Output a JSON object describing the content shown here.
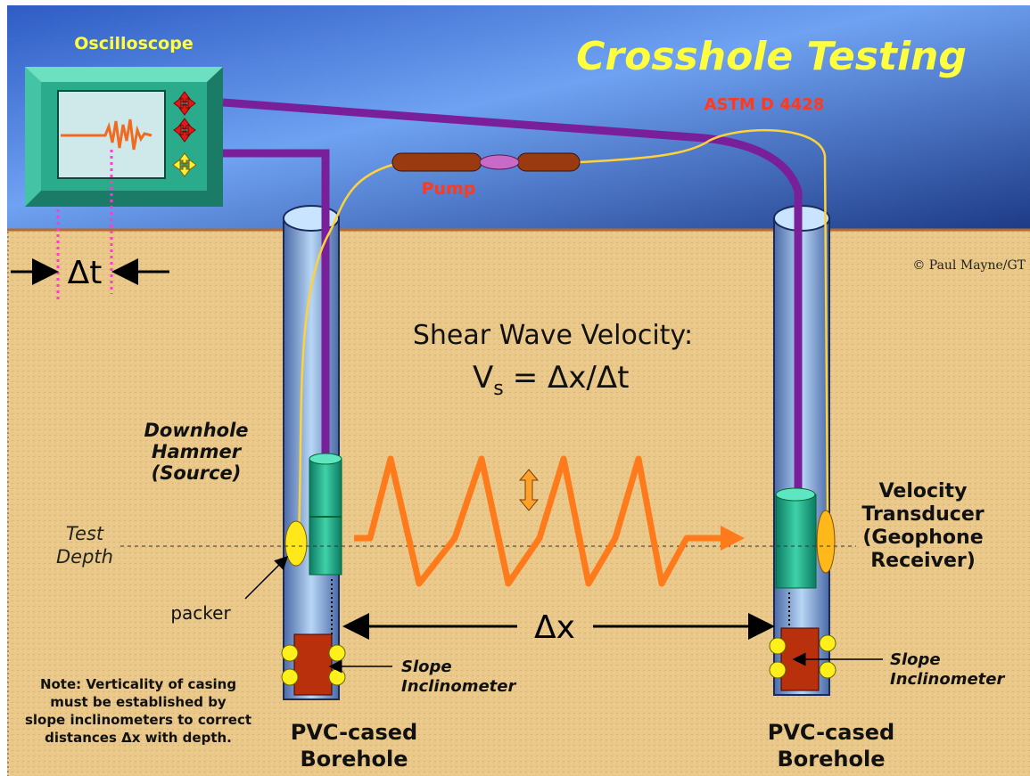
{
  "title": "Crosshole Testing",
  "standard": "ASTM D 4428",
  "credit": "© Paul Mayne/GT",
  "oscilloscope": {
    "label": "Oscilloscope",
    "delta_t": "Δt"
  },
  "pump": "Pump",
  "formula": {
    "heading": "Shear Wave Velocity:",
    "symbol": "V",
    "subscript": "s",
    "rest": "=  Δx/Δt"
  },
  "source": {
    "lines": [
      "Downhole",
      "Hammer",
      "(Source)"
    ]
  },
  "test_depth": {
    "lines": [
      "Test",
      "Depth"
    ]
  },
  "packer": "packer",
  "receiver": {
    "lines": [
      "Velocity",
      "Transducer",
      "(Geophone",
      "Receiver)"
    ]
  },
  "spacing": "Δx",
  "left_inclinometer": {
    "lines": [
      "Slope",
      "Inclinometer"
    ]
  },
  "right_inclinometer": {
    "lines": [
      "Slope",
      "Inclinometer"
    ]
  },
  "note": {
    "lines": [
      "Note: Verticality of casing",
      "must be established by",
      "slope inclinometers to correct",
      "distances Δx with depth."
    ]
  },
  "left_borehole": {
    "lines": [
      "PVC-cased",
      "Borehole"
    ]
  },
  "right_borehole": {
    "lines": [
      "PVC-cased",
      "Borehole"
    ]
  }
}
